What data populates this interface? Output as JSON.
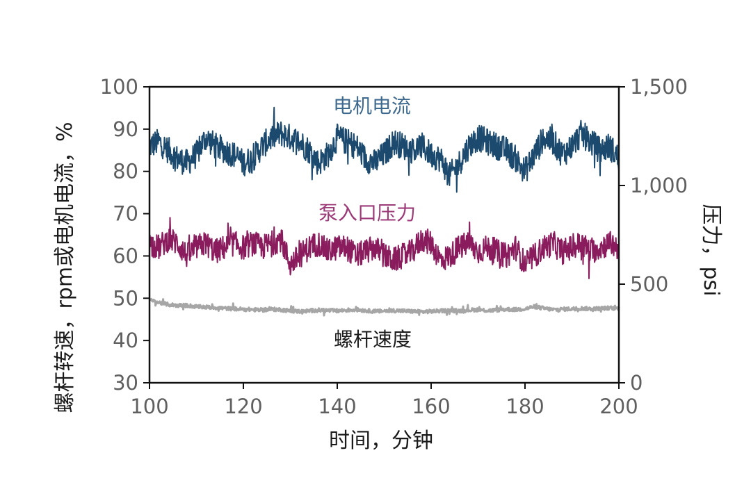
{
  "chart_data": {
    "type": "line",
    "xlabel": "时间，分钟",
    "ylabel_left": "螺杆转速，rpm或电机电流，%",
    "ylabel_right": "压力，psi",
    "xlim": [
      100,
      200
    ],
    "ylim_left": [
      30,
      100
    ],
    "ylim_right": [
      0,
      1500
    ],
    "x_ticks": [
      "100",
      "120",
      "140",
      "160",
      "180",
      "200"
    ],
    "y_left_ticks": [
      "30",
      "40",
      "50",
      "60",
      "70",
      "80",
      "90",
      "100"
    ],
    "y_right_ticks": [
      "0",
      "500",
      "1,000",
      "1,500"
    ],
    "grid": false,
    "colors": {
      "motor_current": "#1b4a6e",
      "pump_inlet_pressure": "#8a1c5e",
      "screw_speed": "#a6a6a6"
    },
    "series": [
      {
        "name": "电机电流",
        "axis": "left",
        "label_color": "#3d6a8e",
        "x": [
          100,
          102,
          104,
          106,
          108,
          110,
          112,
          114,
          116,
          118,
          120,
          122,
          124,
          126,
          128,
          130,
          132,
          134,
          136,
          138,
          140,
          142,
          144,
          146,
          148,
          150,
          152,
          154,
          156,
          158,
          160,
          162,
          164,
          166,
          168,
          170,
          172,
          174,
          176,
          178,
          180,
          182,
          184,
          186,
          188,
          190,
          192,
          194,
          196,
          198,
          200
        ],
        "values": [
          86,
          87,
          85,
          83,
          82,
          84,
          88,
          86,
          85,
          84,
          82,
          83,
          86,
          88,
          89,
          88,
          87,
          85,
          82,
          84,
          88,
          87,
          86,
          83,
          82,
          84,
          87,
          86,
          85,
          86,
          84,
          83,
          79,
          82,
          86,
          88,
          87,
          86,
          85,
          83,
          80,
          84,
          88,
          87,
          84,
          86,
          89,
          87,
          85,
          86,
          83
        ]
      },
      {
        "name": "泵入口压力",
        "axis": "left",
        "label_color": "#9c3a78",
        "x": [
          100,
          102,
          104,
          106,
          108,
          110,
          112,
          114,
          116,
          118,
          120,
          122,
          124,
          126,
          128,
          130,
          132,
          134,
          136,
          138,
          140,
          142,
          144,
          146,
          148,
          150,
          152,
          154,
          156,
          158,
          160,
          162,
          164,
          166,
          168,
          170,
          172,
          174,
          176,
          178,
          180,
          182,
          184,
          186,
          188,
          190,
          192,
          194,
          196,
          198,
          200
        ],
        "values": [
          63,
          62,
          64,
          63,
          60,
          62,
          63,
          61,
          62,
          63,
          62,
          63,
          62,
          63,
          64,
          58,
          60,
          62,
          63,
          61,
          62,
          62,
          60,
          61,
          62,
          60,
          59,
          60,
          61,
          64,
          63,
          59,
          60,
          62,
          63,
          61,
          62,
          61,
          60,
          62,
          58,
          60,
          62,
          63,
          61,
          62,
          63,
          61,
          62,
          63,
          62
        ]
      },
      {
        "name": "螺杆速度",
        "axis": "left",
        "label_color": "#1a1a1a",
        "x": [
          100,
          102,
          104,
          106,
          108,
          110,
          112,
          114,
          116,
          118,
          120,
          122,
          124,
          126,
          128,
          130,
          132,
          134,
          136,
          138,
          140,
          142,
          144,
          146,
          148,
          150,
          152,
          154,
          156,
          158,
          160,
          162,
          164,
          166,
          168,
          170,
          172,
          174,
          176,
          178,
          180,
          182,
          184,
          186,
          188,
          190,
          192,
          194,
          196,
          198,
          200
        ],
        "values": [
          49.5,
          49,
          48.5,
          48.3,
          48.3,
          48,
          47.9,
          47.8,
          47.6,
          47.5,
          47.4,
          47.3,
          47.2,
          47.4,
          47.3,
          47,
          46.9,
          47,
          47.2,
          47.1,
          47,
          47.2,
          47.3,
          47.1,
          46.9,
          47,
          47.1,
          47,
          46.9,
          46.8,
          46.9,
          47,
          47.1,
          47,
          47.2,
          47.3,
          47.1,
          47.2,
          47.4,
          47.3,
          47.5,
          48,
          47.6,
          47.3,
          47.4,
          47.5,
          47.6,
          47.5,
          47.6,
          47.7,
          47.6
        ]
      }
    ]
  }
}
